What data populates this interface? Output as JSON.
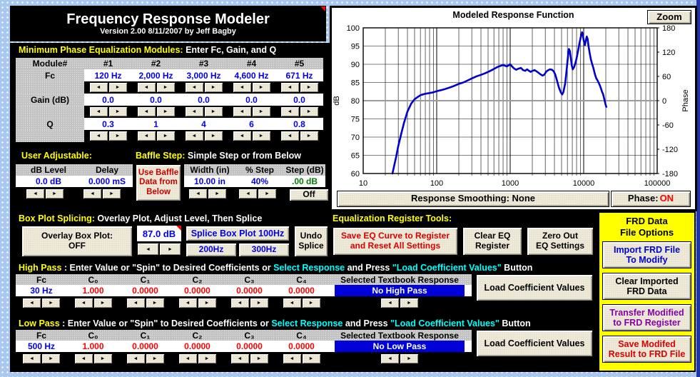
{
  "title": {
    "line1": "Frequency Response Modeler",
    "line2": "Version 2.00  8/11/2007 by Jeff Bagby"
  },
  "icons": {
    "spin_left": "◄",
    "spin_right": "►"
  },
  "eq": {
    "h_em": "Minimum Phase Equalization Modules:",
    "h_rest": " Enter Fc, Gain, and Q",
    "module_label": "Module#",
    "cols": [
      "#1",
      "#2",
      "#3",
      "#4",
      "#5"
    ],
    "fc_label": "Fc",
    "fc": [
      "120 Hz",
      "2,000 Hz",
      "3,000 Hz",
      "4,600 Hz",
      "671 Hz"
    ],
    "gain_label": "Gain (dB)",
    "gain": [
      "0.0",
      "0.0",
      "0.0",
      "0.0",
      "0.0"
    ],
    "q_label": "Q",
    "q": [
      "0.3",
      "1",
      "4",
      "6",
      "0.8"
    ]
  },
  "user_adj": {
    "h_em": "User Adjustable:",
    "db_label": "dB Level",
    "db_value": "0.0 dB",
    "delay_label": "Delay",
    "delay_value": "0.000 mS"
  },
  "baffle": {
    "h_em": "Baffle Step:",
    "h_rest": " Simple Step or from Below",
    "use_l1": "Use Baffle",
    "use_l2": "Data from",
    "use_l3": "Below",
    "width_label": "Width (in)",
    "width_value": "10.00 in",
    "step_pct_label": "% Step",
    "step_pct_value": "40%",
    "step_db_label": "Step (dB)",
    "step_db_value": ".00 dB",
    "off_button": "Off"
  },
  "box_plot": {
    "h_em": "Box Plot Splicing:",
    "h_rest": " Overlay Plot, Adjust Level, Then Splice",
    "overlay_l1": "Overlay Box Plot:",
    "overlay_l2": "OFF",
    "level_value": "87.0 dB",
    "splice_100": "Splice Box Plot 100Hz",
    "splice_200": "200Hz",
    "splice_300": "300Hz",
    "undo_l1": "Undo",
    "undo_l2": "Splice"
  },
  "eq_register": {
    "h_em": "Equalization Register Tools:",
    "save_l1": "Save EQ Curve to Register",
    "save_l2": "and Reset All Settings",
    "clear_l1": "Clear EQ",
    "clear_l2": "Register",
    "zero_l1": "Zero Out",
    "zero_l2": "EQ Settings"
  },
  "high_pass": {
    "h1": "High Pass",
    "h2": " : Enter Value or \"Spin\" to Desired Coefficients or ",
    "h3": "Select Response",
    "h4": " and Press ",
    "h5": "\"Load Coefficient Values\"",
    "h6": " Button",
    "col_headers": [
      "Fc",
      "C₀",
      "C₁",
      "C₂",
      "C₃",
      "C₄"
    ],
    "values": [
      "30 Hz",
      "1.000",
      "0.0000",
      "0.0000",
      "0.0000",
      "0.0000"
    ],
    "selected_header": "Selected Textbook Response",
    "selected_value": "No High Pass",
    "load_button": "Load Coefficient Values"
  },
  "low_pass": {
    "h1": "Low Pass",
    "h2": " : Enter Value or \"Spin\" to Desired Coefficients or ",
    "h3": "Select Response",
    "h4": " and Press ",
    "h5": "\"Load Coefficient Values\"",
    "h6": " Button",
    "col_headers": [
      "Fc",
      "C₀",
      "C₁",
      "C₂",
      "C₃",
      "C₄"
    ],
    "values": [
      "500 Hz",
      "1.000",
      "0.0000",
      "0.0000",
      "0.0000",
      "0.0000"
    ],
    "selected_header": "Selected Textbook Response",
    "selected_value": "No Low Pass",
    "load_button": "Load Coefficient Values"
  },
  "frd": {
    "title_l1": "FRD Data",
    "title_l2": "File Options",
    "buttons": [
      {
        "l1": "Import FRD File",
        "l2": "To Modify"
      },
      {
        "l1": "Clear Imported",
        "l2": "FRD Data"
      },
      {
        "l1": "Transfer Modified",
        "l2": "to FRD Register"
      },
      {
        "l1": "Save Modifed",
        "l2": "Result to FRD File"
      }
    ]
  },
  "chart_ui": {
    "zoom": "Zoom",
    "smoothing": "Response Smoothing: None",
    "phase_prefix": "Phase:",
    "phase_state": "ON"
  },
  "chart_data": {
    "type": "line",
    "title": "Modeled Response Function",
    "ylabel_left": "dB",
    "ylabel_right": "Phase",
    "xlim": [
      10,
      100000
    ],
    "x_log": true,
    "ylim_left": [
      60,
      100
    ],
    "yticks_left": [
      60,
      65,
      70,
      75,
      80,
      85,
      90,
      95,
      100
    ],
    "ylim_right": [
      -180,
      180
    ],
    "yticks_right": [
      -180,
      -120,
      -60,
      0,
      60,
      120,
      180
    ],
    "xticks": [
      10,
      100,
      1000,
      10000,
      100000
    ],
    "grid": true,
    "legend": "none",
    "series": [
      {
        "name": "Phase (deg)",
        "axis": "right",
        "color": "#9b9b9b",
        "width": 2,
        "points": [
          [
            10,
            0
          ],
          [
            100000,
            0
          ]
        ]
      },
      {
        "name": "SPL (dB)",
        "axis": "left",
        "color": "#0000cc",
        "width": 2.6,
        "points": [
          [
            25,
            60
          ],
          [
            26,
            61.5
          ],
          [
            28,
            64.5
          ],
          [
            30,
            67.5
          ],
          [
            33,
            71
          ],
          [
            36,
            74
          ],
          [
            40,
            77
          ],
          [
            45,
            79.2
          ],
          [
            50,
            80.4
          ],
          [
            55,
            81
          ],
          [
            60,
            81.5
          ],
          [
            70,
            81.9
          ],
          [
            80,
            82.1
          ],
          [
            90,
            82.3
          ],
          [
            100,
            82.6
          ],
          [
            115,
            82.9
          ],
          [
            130,
            83.2
          ],
          [
            150,
            83.6
          ],
          [
            170,
            84
          ],
          [
            200,
            84.6
          ],
          [
            230,
            85
          ],
          [
            260,
            85.5
          ],
          [
            300,
            86.1
          ],
          [
            350,
            86.7
          ],
          [
            400,
            87.1
          ],
          [
            450,
            87.5
          ],
          [
            500,
            87.9
          ],
          [
            550,
            88.3
          ],
          [
            600,
            88.7
          ],
          [
            650,
            89.1
          ],
          [
            700,
            89.4
          ],
          [
            750,
            89.6
          ],
          [
            800,
            89.8
          ],
          [
            850,
            89.6
          ],
          [
            900,
            89.4
          ],
          [
            950,
            89.7
          ],
          [
            1000,
            90
          ],
          [
            1060,
            89.4
          ],
          [
            1120,
            88.9
          ],
          [
            1200,
            88.5
          ],
          [
            1300,
            88.8
          ],
          [
            1400,
            89
          ],
          [
            1500,
            88.4
          ],
          [
            1600,
            88.2
          ],
          [
            1700,
            88.6
          ],
          [
            1800,
            88.2
          ],
          [
            1900,
            87.9
          ],
          [
            2000,
            88.2
          ],
          [
            2150,
            88.4
          ],
          [
            2300,
            88
          ],
          [
            2450,
            87.6
          ],
          [
            2600,
            87.2
          ],
          [
            2750,
            86.9
          ],
          [
            2900,
            87.1
          ],
          [
            3100,
            88
          ],
          [
            3300,
            88.4
          ],
          [
            3500,
            88.6
          ],
          [
            3700,
            88.5
          ],
          [
            3900,
            88.1
          ],
          [
            4100,
            87.2
          ],
          [
            4300,
            85.8
          ],
          [
            4600,
            83.6
          ],
          [
            4900,
            82.2
          ],
          [
            5100,
            81.7
          ],
          [
            5300,
            82.4
          ],
          [
            5600,
            84.8
          ],
          [
            5900,
            89
          ],
          [
            6100,
            92
          ],
          [
            6300,
            94.2
          ],
          [
            6500,
            93.6
          ],
          [
            6700,
            91.5
          ],
          [
            6900,
            89.6
          ],
          [
            7100,
            88.6
          ],
          [
            7400,
            89.2
          ],
          [
            7700,
            90.3
          ],
          [
            8000,
            91.6
          ],
          [
            8400,
            93.8
          ],
          [
            8800,
            96
          ],
          [
            9200,
            97.8
          ],
          [
            9500,
            98.8
          ],
          [
            9700,
            98.2
          ],
          [
            9900,
            97
          ],
          [
            10100,
            96.2
          ],
          [
            10400,
            95.3
          ],
          [
            10700,
            96.5
          ],
          [
            11000,
            97.6
          ],
          [
            11300,
            97
          ],
          [
            11600,
            95.2
          ],
          [
            12000,
            93.3
          ],
          [
            12500,
            91.4
          ],
          [
            13000,
            90.2
          ],
          [
            13600,
            88.8
          ],
          [
            14200,
            87.3
          ],
          [
            14800,
            86.2
          ],
          [
            15400,
            85.6
          ],
          [
            16000,
            84.9
          ],
          [
            16600,
            84.2
          ],
          [
            17200,
            83.3
          ],
          [
            17800,
            82.4
          ],
          [
            18300,
            81.9
          ],
          [
            18800,
            81
          ],
          [
            19300,
            80
          ],
          [
            19800,
            79
          ],
          [
            20300,
            78.3
          ]
        ]
      }
    ]
  }
}
